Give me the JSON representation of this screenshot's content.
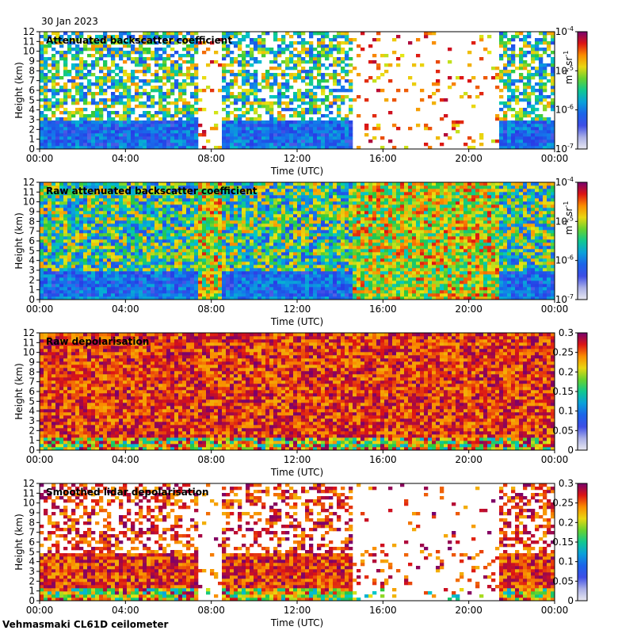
{
  "date": "30 Jan 2023",
  "footer": "Vehmasmaki CL61D ceilometer",
  "chart_data": [
    {
      "type": "heatmap",
      "title": "Attenuated backscatter coefficient",
      "xlabel": "Time (UTC)",
      "ylabel": "Height (km)",
      "x_ticks": [
        "00:00",
        "04:00",
        "08:00",
        "12:00",
        "16:00",
        "20:00",
        "00:00"
      ],
      "xlim_hours": [
        0,
        24
      ],
      "y_ticks": [
        0,
        1,
        2,
        3,
        4,
        5,
        6,
        7,
        8,
        9,
        10,
        11,
        12
      ],
      "ylim": [
        0,
        12
      ],
      "colorbar": {
        "scale": "log",
        "range": [
          1e-07,
          0.0001
        ],
        "tick_labels": [
          "10",
          "10",
          "10",
          "10"
        ],
        "tick_exponents": [
          "-7",
          "-6",
          "-5",
          "-4"
        ],
        "unit_base": "m",
        "unit_exp1": "-1",
        "unit_mid": " sr",
        "unit_exp2": "-1"
      }
    },
    {
      "type": "heatmap",
      "title": "Raw attenuated backscatter coefficient",
      "xlabel": "Time (UTC)",
      "ylabel": "Height (km)",
      "x_ticks": [
        "00:00",
        "04:00",
        "08:00",
        "12:00",
        "16:00",
        "20:00",
        "00:00"
      ],
      "xlim_hours": [
        0,
        24
      ],
      "y_ticks": [
        0,
        1,
        2,
        3,
        4,
        5,
        6,
        7,
        8,
        9,
        10,
        11,
        12
      ],
      "ylim": [
        0,
        12
      ],
      "colorbar": {
        "scale": "log",
        "range": [
          1e-07,
          0.0001
        ],
        "tick_labels": [
          "10",
          "10",
          "10",
          "10"
        ],
        "tick_exponents": [
          "-7",
          "-6",
          "-5",
          "-4"
        ],
        "unit_base": "m",
        "unit_exp1": "-1",
        "unit_mid": " sr",
        "unit_exp2": "-1"
      }
    },
    {
      "type": "heatmap",
      "title": "Raw depolarisation",
      "xlabel": "Time (UTC)",
      "ylabel": "Height (km)",
      "x_ticks": [
        "00:00",
        "04:00",
        "08:00",
        "12:00",
        "16:00",
        "20:00",
        "00:00"
      ],
      "xlim_hours": [
        0,
        24
      ],
      "y_ticks": [
        0,
        1,
        2,
        3,
        4,
        5,
        6,
        7,
        8,
        9,
        10,
        11,
        12
      ],
      "ylim": [
        0,
        12
      ],
      "colorbar": {
        "scale": "linear",
        "range": [
          0,
          0.3
        ],
        "tick_labels": [
          "0",
          "0.05",
          "0.1",
          "0.15",
          "0.2",
          "0.25",
          "0.3"
        ],
        "tick_values": [
          0,
          0.05,
          0.1,
          0.15,
          0.2,
          0.25,
          0.3
        ]
      }
    },
    {
      "type": "heatmap",
      "title": "Smoothed lidar depolarisation",
      "xlabel": "Time (UTC)",
      "ylabel": "Height (km)",
      "x_ticks": [
        "00:00",
        "04:00",
        "08:00",
        "12:00",
        "16:00",
        "20:00",
        "00:00"
      ],
      "xlim_hours": [
        0,
        24
      ],
      "y_ticks": [
        0,
        1,
        2,
        3,
        4,
        5,
        6,
        7,
        8,
        9,
        10,
        11,
        12
      ],
      "ylim": [
        0,
        12
      ],
      "colorbar": {
        "scale": "linear",
        "range": [
          0,
          0.3
        ],
        "tick_labels": [
          "0",
          "0.05",
          "0.1",
          "0.15",
          "0.2",
          "0.25",
          "0.3"
        ],
        "tick_values": [
          0,
          0.05,
          0.1,
          0.15,
          0.2,
          0.25,
          0.3
        ]
      }
    }
  ]
}
